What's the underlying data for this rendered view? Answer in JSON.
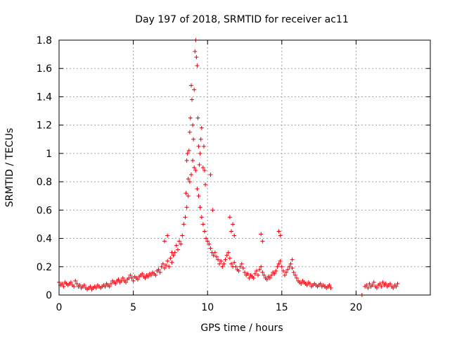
{
  "chart_data": {
    "type": "scatter",
    "title": "Day 197 of 2018, SRMTID for receiver ac11",
    "xlabel": "GPS time / hours",
    "ylabel": "SRMTID / TECUs",
    "xlim": [
      0,
      25
    ],
    "ylim": [
      0,
      1.8
    ],
    "xticks": [
      0,
      5,
      10,
      15,
      20
    ],
    "xtick_labels": [
      "0",
      "5",
      "10",
      "15",
      "20"
    ],
    "yticks": [
      0,
      0.2,
      0.4,
      0.6,
      0.8,
      1,
      1.2,
      1.4,
      1.6,
      1.8
    ],
    "ytick_labels": [
      "0",
      "0.2",
      "0.4",
      "0.6",
      "0.8",
      "1",
      "1.2",
      "1.4",
      "1.6",
      "1.8"
    ],
    "grid": true,
    "marker": "plus",
    "color": "#e8000b",
    "series": [
      {
        "name": "SRMTID",
        "x": [
          0.0,
          0.1,
          0.2,
          0.3,
          0.4,
          0.5,
          0.6,
          0.7,
          0.8,
          0.9,
          1.0,
          1.1,
          1.2,
          1.3,
          1.4,
          1.5,
          1.6,
          1.7,
          1.8,
          1.9,
          2.0,
          2.1,
          2.2,
          2.3,
          2.4,
          2.5,
          2.6,
          2.7,
          2.8,
          2.9,
          3.0,
          3.1,
          3.2,
          3.3,
          3.4,
          3.5,
          3.6,
          3.7,
          3.8,
          3.9,
          4.0,
          4.1,
          4.2,
          4.3,
          4.4,
          4.5,
          4.6,
          4.7,
          4.8,
          4.9,
          5.0,
          5.1,
          5.2,
          5.3,
          5.4,
          5.5,
          5.6,
          5.7,
          5.8,
          5.9,
          6.0,
          6.1,
          6.2,
          6.3,
          6.4,
          6.5,
          6.6,
          6.7,
          6.8,
          6.9,
          7.0,
          7.1,
          7.2,
          7.3,
          7.4,
          7.5,
          7.6,
          7.7,
          7.8,
          7.9,
          8.0,
          8.1,
          8.2,
          8.3,
          8.4,
          8.5,
          8.6,
          8.7,
          8.8,
          8.9,
          9.0,
          9.1,
          9.2,
          9.3,
          9.4,
          9.5,
          9.6,
          9.7,
          9.8,
          9.9,
          10.0,
          10.1,
          10.2,
          10.3,
          10.4,
          10.5,
          10.6,
          10.7,
          10.8,
          10.9,
          11.0,
          11.1,
          11.2,
          11.3,
          11.4,
          11.5,
          11.6,
          11.7,
          11.8,
          11.9,
          12.0,
          12.1,
          12.2,
          12.3,
          12.4,
          12.5,
          12.6,
          12.7,
          12.8,
          12.9,
          13.0,
          13.1,
          13.2,
          13.3,
          13.4,
          13.5,
          13.6,
          13.7,
          13.8,
          13.9,
          14.0,
          14.1,
          14.2,
          14.3,
          14.4,
          14.5,
          14.6,
          14.7,
          14.8,
          14.9,
          15.0,
          15.1,
          15.2,
          15.3,
          15.4,
          15.5,
          15.6,
          15.7,
          15.8,
          15.9,
          16.0,
          16.1,
          16.2,
          16.3,
          16.4,
          16.5,
          16.6,
          16.7,
          16.8,
          16.9,
          17.0,
          17.1,
          17.2,
          17.3,
          17.4,
          17.5,
          17.6,
          17.7,
          17.8,
          17.9,
          18.0,
          18.1,
          18.2,
          18.3,
          20.4,
          20.6,
          20.7,
          20.8,
          20.9,
          21.0,
          21.1,
          21.2,
          21.3,
          21.4,
          21.5,
          21.6,
          21.7,
          21.8,
          21.9,
          22.0,
          22.1,
          22.2,
          22.3,
          22.4,
          22.5,
          22.6,
          22.7,
          22.8,
          8.75,
          8.8,
          8.85,
          8.9,
          8.95,
          9.0,
          9.05,
          9.1,
          9.15,
          9.2,
          9.25,
          9.3,
          9.35,
          9.4,
          9.45,
          9.5,
          9.55,
          9.6,
          8.6,
          8.65,
          8.7,
          8.55,
          9.7,
          9.75,
          9.8,
          9.85,
          10.2,
          10.35,
          11.5,
          11.6,
          11.7,
          11.8,
          13.6,
          13.7,
          14.8,
          14.9,
          15.7,
          7.1,
          7.3,
          7.6
        ],
        "y": [
          0.09,
          0.07,
          0.08,
          0.06,
          0.09,
          0.08,
          0.07,
          0.08,
          0.09,
          0.07,
          0.06,
          0.1,
          0.08,
          0.06,
          0.07,
          0.05,
          0.06,
          0.07,
          0.05,
          0.04,
          0.05,
          0.06,
          0.04,
          0.05,
          0.06,
          0.05,
          0.07,
          0.06,
          0.05,
          0.06,
          0.07,
          0.06,
          0.08,
          0.07,
          0.06,
          0.08,
          0.1,
          0.09,
          0.08,
          0.1,
          0.11,
          0.09,
          0.1,
          0.12,
          0.1,
          0.09,
          0.11,
          0.12,
          0.14,
          0.12,
          0.1,
          0.13,
          0.12,
          0.11,
          0.13,
          0.14,
          0.15,
          0.13,
          0.12,
          0.14,
          0.13,
          0.15,
          0.14,
          0.16,
          0.15,
          0.14,
          0.17,
          0.18,
          0.16,
          0.2,
          0.22,
          0.19,
          0.21,
          0.24,
          0.2,
          0.26,
          0.23,
          0.28,
          0.3,
          0.35,
          0.32,
          0.38,
          0.36,
          0.42,
          0.5,
          0.55,
          0.62,
          0.7,
          0.8,
          0.85,
          0.95,
          0.9,
          0.88,
          0.75,
          0.7,
          0.62,
          0.55,
          0.5,
          0.45,
          0.4,
          0.38,
          0.36,
          0.33,
          0.3,
          0.28,
          0.3,
          0.27,
          0.25,
          0.22,
          0.24,
          0.2,
          0.22,
          0.25,
          0.28,
          0.3,
          0.26,
          0.22,
          0.2,
          0.23,
          0.2,
          0.18,
          0.17,
          0.2,
          0.22,
          0.19,
          0.16,
          0.14,
          0.15,
          0.12,
          0.14,
          0.13,
          0.12,
          0.15,
          0.17,
          0.14,
          0.18,
          0.2,
          0.16,
          0.14,
          0.12,
          0.11,
          0.13,
          0.12,
          0.14,
          0.16,
          0.15,
          0.17,
          0.2,
          0.22,
          0.24,
          0.2,
          0.17,
          0.14,
          0.16,
          0.18,
          0.2,
          0.22,
          0.19,
          0.16,
          0.14,
          0.12,
          0.1,
          0.09,
          0.08,
          0.1,
          0.09,
          0.08,
          0.07,
          0.09,
          0.08,
          0.06,
          0.07,
          0.08,
          0.07,
          0.06,
          0.07,
          0.08,
          0.06,
          0.07,
          0.06,
          0.05,
          0.06,
          0.07,
          0.05,
          0.0,
          0.06,
          0.07,
          0.05,
          0.08,
          0.06,
          0.07,
          0.09,
          0.06,
          0.05,
          0.07,
          0.08,
          0.06,
          0.09,
          0.07,
          0.08,
          0.06,
          0.07,
          0.08,
          0.06,
          0.05,
          0.07,
          0.06,
          0.08,
          1.02,
          1.15,
          1.25,
          1.48,
          1.38,
          1.2,
          1.1,
          1.45,
          1.72,
          1.8,
          1.68,
          1.62,
          1.25,
          1.05,
          0.92,
          1.0,
          1.1,
          1.18,
          0.95,
          1.0,
          0.82,
          0.72,
          0.9,
          1.05,
          0.88,
          0.78,
          0.85,
          0.6,
          0.55,
          0.45,
          0.5,
          0.42,
          0.43,
          0.38,
          0.45,
          0.42,
          0.25,
          0.38,
          0.42,
          0.3
        ]
      }
    ]
  }
}
